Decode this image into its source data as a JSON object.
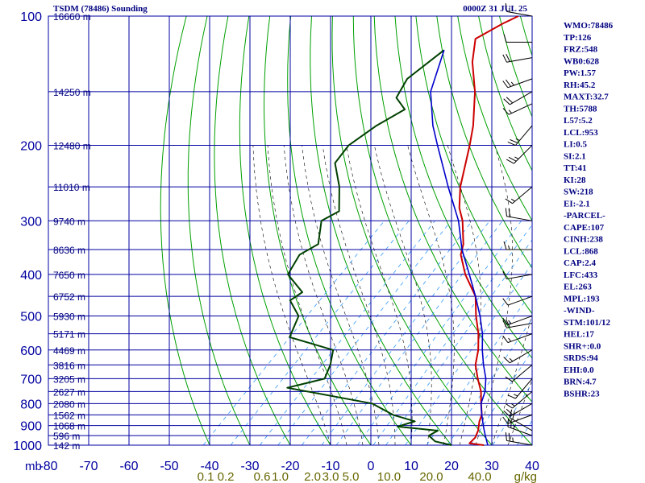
{
  "header": {
    "title": "TSDM (78486) Sounding",
    "time": "0000Z 31 JUL 25"
  },
  "colors": {
    "background": "#ffffff",
    "grid": "#0000a0",
    "dry_adiabat": "#00a000",
    "moist_adiabat": "#000000",
    "mixing_ratio": "#3399ff",
    "temperature": "#cc0000",
    "dewpoint": "#004000",
    "parcel": "#0000cc",
    "axis_text": "#0000a0",
    "mixing_text": "#666600",
    "index_text": "#000080"
  },
  "chart_data": {
    "type": "line",
    "title": "TSDM (78486) Sounding",
    "xlabel": "",
    "ylabel": "mb",
    "x_unit": "°C",
    "xlim": [
      -80,
      40
    ],
    "ylim": [
      1000,
      100
    ],
    "y_scale": "log",
    "skew": "temperature isotherms skewed 45°",
    "grid": true,
    "x_ticks": [
      -80,
      -70,
      -60,
      -50,
      -40,
      -30,
      -20,
      -10,
      0,
      10,
      20,
      30,
      40
    ],
    "x_tick_labels": [
      "-80",
      "-70",
      "-60",
      "-50",
      "-40",
      "-30",
      "-20",
      "-10",
      "0",
      "10",
      "20",
      "30",
      "40"
    ],
    "pressure_ticks": [
      100,
      200,
      300,
      400,
      500,
      600,
      700,
      800,
      900,
      1000
    ],
    "pressure_tick_labels": [
      "100",
      "200",
      "300",
      "400",
      "500",
      "600",
      "700",
      "800",
      "900",
      "1000"
    ],
    "y_axis_unit_label": "mb",
    "height_labels": [
      {
        "p": 100,
        "label": "16660 m"
      },
      {
        "p": 150,
        "label": "14250 m"
      },
      {
        "p": 200,
        "label": "12480 m"
      },
      {
        "p": 250,
        "label": "11010 m"
      },
      {
        "p": 300,
        "label": "9740 m"
      },
      {
        "p": 350,
        "label": "8636 m"
      },
      {
        "p": 400,
        "label": "7650 m"
      },
      {
        "p": 450,
        "label": "6752 m"
      },
      {
        "p": 500,
        "label": "5930 m"
      },
      {
        "p": 550,
        "label": "5171 m"
      },
      {
        "p": 600,
        "label": "4469 m"
      },
      {
        "p": 650,
        "label": "3816 m"
      },
      {
        "p": 700,
        "label": "3205 m"
      },
      {
        "p": 750,
        "label": "2627 m"
      },
      {
        "p": 800,
        "label": "2080 m"
      },
      {
        "p": 850,
        "label": "1562 m"
      },
      {
        "p": 900,
        "label": "1068 m"
      },
      {
        "p": 950,
        "label": "596 m"
      },
      {
        "p": 1000,
        "label": "142 m"
      }
    ],
    "mixing_ratio_labels": [
      {
        "value": "0.1",
        "t": -41
      },
      {
        "value": "0.2",
        "t": -36
      },
      {
        "value": "0.6",
        "t": -27
      },
      {
        "value": "1.0",
        "t": -22.5
      },
      {
        "value": "2.0",
        "t": -14.5
      },
      {
        "value": "3.0",
        "t": -10
      },
      {
        "value": "5.0",
        "t": -5
      },
      {
        "value": "10.0",
        "t": 4.5
      },
      {
        "value": "20.0",
        "t": 15
      },
      {
        "value": "40.0",
        "t": 27
      }
    ],
    "mixing_unit": "g/kg",
    "series": [
      {
        "key": "temperature",
        "points": [
          [
            100,
            -70
          ],
          [
            104,
            -72
          ],
          [
            113,
            -75
          ],
          [
            128,
            -70
          ],
          [
            150,
            -62
          ],
          [
            180,
            -54
          ],
          [
            200,
            -50
          ],
          [
            250,
            -42
          ],
          [
            280,
            -37
          ],
          [
            300,
            -33
          ],
          [
            340,
            -27
          ],
          [
            360,
            -25
          ],
          [
            400,
            -19
          ],
          [
            450,
            -11
          ],
          [
            500,
            -6
          ],
          [
            550,
            -1
          ],
          [
            600,
            3
          ],
          [
            650,
            6
          ],
          [
            700,
            10
          ],
          [
            750,
            14
          ],
          [
            800,
            17
          ],
          [
            850,
            20
          ],
          [
            880,
            21
          ],
          [
            925,
            23
          ],
          [
            960,
            24
          ],
          [
            990,
            24
          ],
          [
            1000,
            28
          ]
        ]
      },
      {
        "key": "dewpoint",
        "points": [
          [
            120,
            -80
          ],
          [
            140,
            -82
          ],
          [
            155,
            -80
          ],
          [
            165,
            -75
          ],
          [
            180,
            -78
          ],
          [
            200,
            -80
          ],
          [
            220,
            -79
          ],
          [
            250,
            -72
          ],
          [
            285,
            -66
          ],
          [
            300,
            -68
          ],
          [
            340,
            -63
          ],
          [
            360,
            -65
          ],
          [
            400,
            -63
          ],
          [
            440,
            -55
          ],
          [
            460,
            -56
          ],
          [
            500,
            -50
          ],
          [
            560,
            -47
          ],
          [
            600,
            -33
          ],
          [
            650,
            -30
          ],
          [
            700,
            -28
          ],
          [
            735,
            -35
          ],
          [
            800,
            -10
          ],
          [
            850,
            -2
          ],
          [
            880,
            5
          ],
          [
            905,
            2
          ],
          [
            925,
            13
          ],
          [
            950,
            12
          ],
          [
            980,
            15
          ],
          [
            1000,
            20
          ]
        ]
      },
      {
        "key": "parcel",
        "points": [
          [
            120,
            -80
          ],
          [
            150,
            -73
          ],
          [
            180,
            -64
          ],
          [
            200,
            -58
          ],
          [
            250,
            -45
          ],
          [
            300,
            -34
          ],
          [
            350,
            -26
          ],
          [
            400,
            -18
          ],
          [
            450,
            -11
          ],
          [
            500,
            -5
          ],
          [
            550,
            0
          ],
          [
            600,
            4
          ],
          [
            650,
            8
          ],
          [
            700,
            12
          ],
          [
            750,
            15
          ],
          [
            800,
            17
          ],
          [
            850,
            20
          ],
          [
            900,
            23
          ],
          [
            950,
            26
          ],
          [
            1000,
            29
          ]
        ]
      }
    ],
    "winds": [
      {
        "p": 100,
        "dir": 280,
        "spd": 15
      },
      {
        "p": 115,
        "dir": 270,
        "spd": 10
      },
      {
        "p": 125,
        "dir": 260,
        "spd": 20
      },
      {
        "p": 140,
        "dir": 250,
        "spd": 25
      },
      {
        "p": 150,
        "dir": 240,
        "spd": 20
      },
      {
        "p": 160,
        "dir": 245,
        "spd": 15
      },
      {
        "p": 180,
        "dir": 220,
        "spd": 25
      },
      {
        "p": 200,
        "dir": 225,
        "spd": 25
      },
      {
        "p": 250,
        "dir": 230,
        "spd": 15
      },
      {
        "p": 300,
        "dir": 280,
        "spd": 20
      },
      {
        "p": 350,
        "dir": 270,
        "spd": 15
      },
      {
        "p": 400,
        "dir": 260,
        "spd": 10
      },
      {
        "p": 450,
        "dir": 250,
        "spd": 10
      },
      {
        "p": 500,
        "dir": 250,
        "spd": 15
      },
      {
        "p": 520,
        "dir": 260,
        "spd": 20
      },
      {
        "p": 550,
        "dir": 250,
        "spd": 15
      },
      {
        "p": 600,
        "dir": 240,
        "spd": 15
      },
      {
        "p": 650,
        "dir": 230,
        "spd": 10
      },
      {
        "p": 700,
        "dir": 220,
        "spd": 15
      },
      {
        "p": 750,
        "dir": 230,
        "spd": 15
      },
      {
        "p": 800,
        "dir": 240,
        "spd": 20
      },
      {
        "p": 850,
        "dir": 250,
        "spd": 15
      },
      {
        "p": 925,
        "dir": 300,
        "spd": 20
      },
      {
        "p": 950,
        "dir": 290,
        "spd": 25
      },
      {
        "p": 1000,
        "dir": 280,
        "spd": 25
      }
    ]
  },
  "indices": [
    "WMO:78486",
    "TP:126",
    "FRZ:548",
    "WB0:628",
    "PW:1.57",
    "RH:45.2",
    "MAXT:32.7",
    "TH:5788",
    "L57:5.2",
    "LCL:953",
    "LI:0.5",
    "SI:2.1",
    "TT:41",
    "KI:28",
    "SW:218",
    "EI:-2.1",
    "-PARCEL-",
    "CAPE:107",
    "CINH:238",
    "LCL:868",
    "CAP:2.4",
    "LFC:433",
    "EL:263",
    "MPL:193",
    "-WIND-",
    "STM:101/12",
    "HEL:17",
    "SHR+:0.0",
    "SRDS:94",
    "EHI:0.0",
    "BRN:4.7",
    "BSHR:23"
  ]
}
